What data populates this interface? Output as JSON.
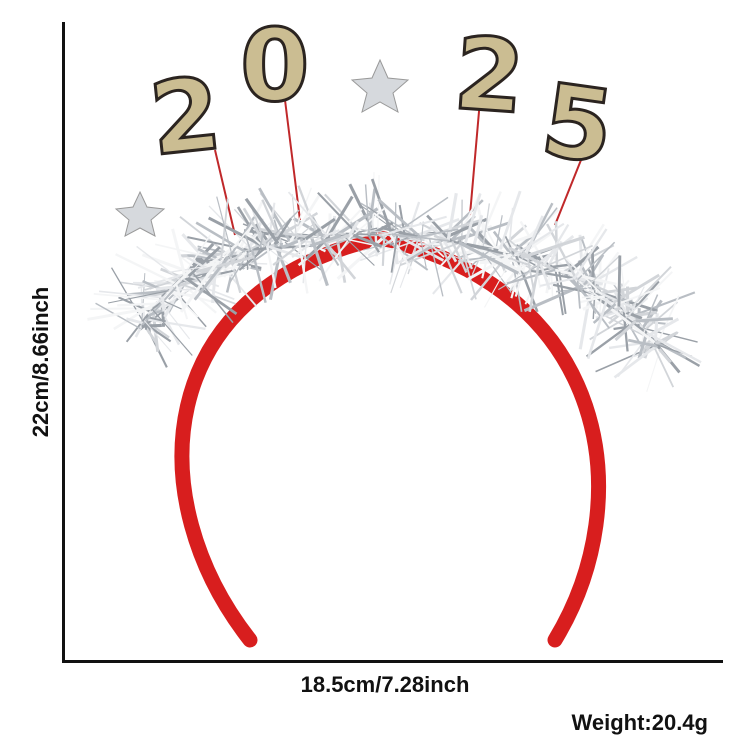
{
  "product": {
    "name_lettering": "2025",
    "colors": {
      "band": "#d81e1e",
      "tinsel": "#c9cdd2",
      "numbers": "#cbbd92"
    }
  },
  "dimensions": {
    "height_label": "22cm/8.66inch",
    "width_label": "18.5cm/7.28inch",
    "weight_label": "Weight:20.4g"
  }
}
